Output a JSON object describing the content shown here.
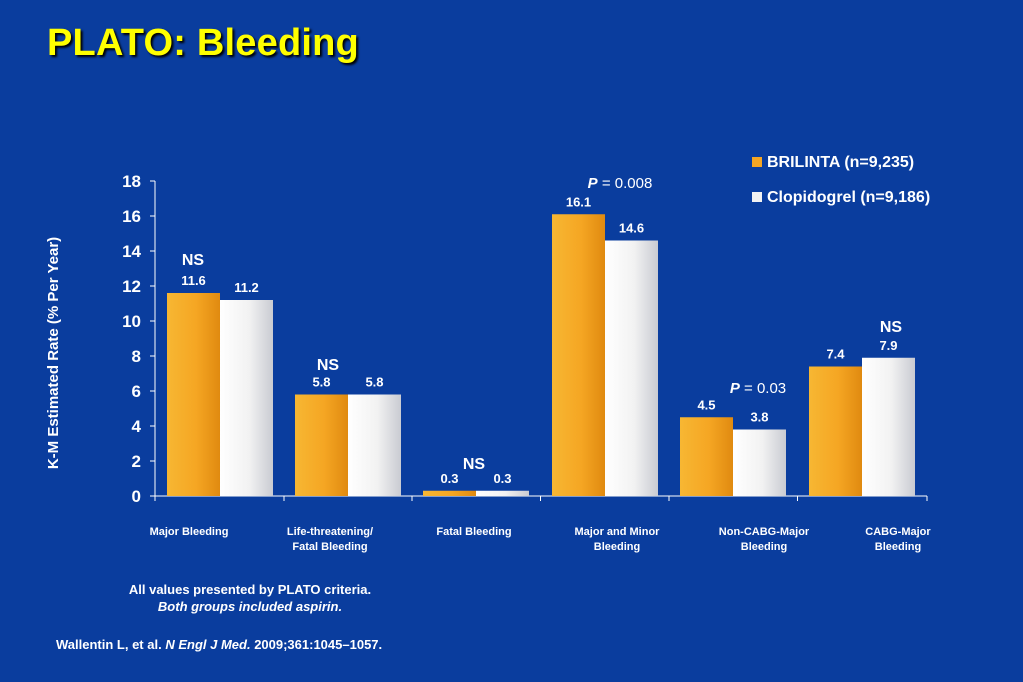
{
  "title": "PLATO: Bleeding",
  "footnotes": {
    "line1": "All values presented by PLATO criteria.",
    "line2": "Both groups included aspirin."
  },
  "citation": {
    "authors": "Wallentin L, et al.",
    "journal": "N Engl J Med.",
    "details": "2009;361:1045–1057."
  },
  "colors": {
    "background": "#0a3d9e",
    "title": "#ffff00",
    "brilinta": "#f5a623",
    "clopidogrel": "#f2f2f2"
  },
  "chart_data": {
    "type": "bar",
    "ylabel": "K-M Estimated Rate (% Per Year)",
    "ylim": [
      0,
      18
    ],
    "yticks": [
      0,
      2,
      4,
      6,
      8,
      10,
      12,
      14,
      16,
      18
    ],
    "categories": [
      [
        "Major Bleeding"
      ],
      [
        "Life-threatening/",
        "Fatal Bleeding"
      ],
      [
        "Fatal Bleeding"
      ],
      [
        "Major and Minor",
        "Bleeding"
      ],
      [
        "Non-CABG-Major",
        "Bleeding"
      ],
      [
        "CABG-Major",
        "Bleeding"
      ]
    ],
    "series": [
      {
        "name": "BRILINTA (n=9,235)",
        "values": [
          11.6,
          5.8,
          0.3,
          16.1,
          4.5,
          7.4
        ]
      },
      {
        "name": "Clopidogrel (n=9,186)",
        "values": [
          11.2,
          5.8,
          0.3,
          14.6,
          3.8,
          7.9
        ]
      }
    ],
    "significance": [
      {
        "italic": "",
        "text": "NS"
      },
      {
        "italic": "",
        "text": "NS"
      },
      {
        "italic": "",
        "text": "NS"
      },
      {
        "italic": "P",
        "text": " = 0.008"
      },
      {
        "italic": "P",
        "text": " = 0.03"
      },
      {
        "italic": "",
        "text": "NS"
      }
    ],
    "legend_position": "top-right",
    "grid": false
  }
}
